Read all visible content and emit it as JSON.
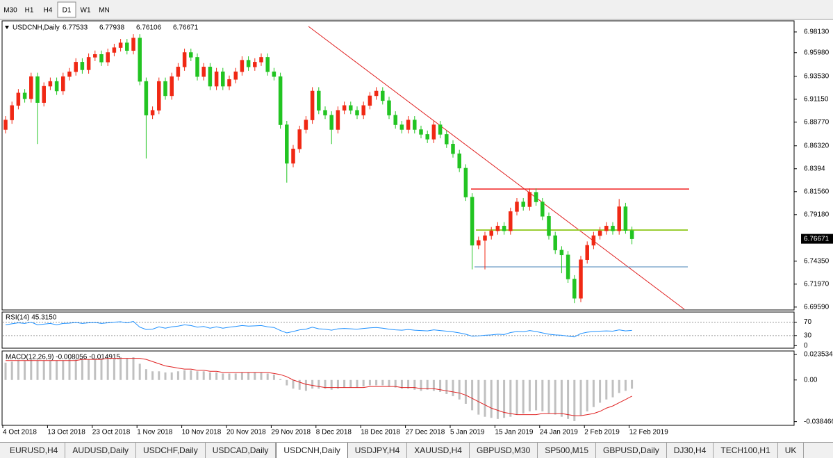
{
  "toolbar": {
    "timeframes": [
      "M30",
      "H1",
      "H4",
      "D1",
      "W1",
      "MN"
    ],
    "active": 3
  },
  "chart_data": [
    {
      "type": "candlestick",
      "title": "USDCNH,Daily",
      "info": {
        "open": 6.77533,
        "high": 6.77938,
        "low": 6.76106,
        "close": 6.76671
      },
      "up_color": "#f02814",
      "down_color": "#22c422",
      "categories": [
        "4 Oct 2018",
        null,
        null,
        null,
        null,
        null,
        null,
        "13 Oct 2018",
        null,
        null,
        null,
        null,
        null,
        null,
        "23 Oct 2018",
        null,
        null,
        null,
        null,
        null,
        null,
        "1 Nov 2018",
        null,
        null,
        null,
        null,
        null,
        null,
        "10 Nov 2018",
        null,
        null,
        null,
        null,
        null,
        null,
        "20 Nov 2018",
        null,
        null,
        null,
        null,
        null,
        null,
        "29 Nov 2018",
        null,
        null,
        null,
        null,
        null,
        null,
        "8 Dec 2018",
        null,
        null,
        null,
        null,
        null,
        null,
        "18 Dec 2018",
        null,
        null,
        null,
        null,
        null,
        null,
        "27 Dec 2018",
        null,
        null,
        null,
        null,
        null,
        null,
        "5 Jan 2019",
        null,
        null,
        null,
        null,
        null,
        null,
        "15 Jan 2019",
        null,
        null,
        null,
        null,
        null,
        null,
        "24 Jan 2019",
        null,
        null,
        null,
        null,
        null,
        null,
        "2 Feb 2019",
        null,
        null,
        null,
        null,
        null,
        null,
        "12 Feb 2019"
      ],
      "ohlc": [
        [
          6.88,
          6.894,
          6.876,
          6.89
        ],
        [
          6.89,
          6.909,
          6.886,
          6.905
        ],
        [
          6.905,
          6.922,
          6.901,
          6.918
        ],
        [
          6.918,
          6.922,
          6.908,
          6.912
        ],
        [
          6.912,
          6.939,
          6.908,
          6.935
        ],
        [
          6.935,
          6.939,
          6.865,
          6.908
        ],
        [
          6.908,
          6.929,
          6.904,
          6.925
        ],
        [
          6.925,
          6.934,
          6.921,
          6.93
        ],
        [
          6.93,
          6.934,
          6.916,
          6.92
        ],
        [
          6.92,
          6.939,
          6.916,
          6.935
        ],
        [
          6.935,
          6.944,
          6.931,
          6.94
        ],
        [
          6.94,
          6.954,
          6.936,
          6.95
        ],
        [
          6.95,
          6.954,
          6.938,
          6.942
        ],
        [
          6.942,
          6.959,
          6.938,
          6.955
        ],
        [
          6.955,
          6.962,
          6.951,
          6.958
        ],
        [
          6.958,
          6.962,
          6.946,
          6.95
        ],
        [
          6.95,
          6.964,
          6.946,
          6.96
        ],
        [
          6.96,
          6.969,
          6.956,
          6.965
        ],
        [
          6.965,
          6.974,
          6.961,
          6.97
        ],
        [
          6.97,
          6.974,
          6.958,
          6.962
        ],
        [
          6.962,
          6.979,
          6.958,
          6.975
        ],
        [
          6.975,
          6.979,
          6.926,
          6.93
        ],
        [
          6.93,
          6.934,
          6.85,
          6.895
        ],
        [
          6.895,
          6.904,
          6.891,
          6.9
        ],
        [
          6.9,
          6.934,
          6.896,
          6.93
        ],
        [
          6.93,
          6.934,
          6.911,
          6.915
        ],
        [
          6.915,
          6.939,
          6.911,
          6.935
        ],
        [
          6.935,
          6.949,
          6.931,
          6.945
        ],
        [
          6.945,
          6.964,
          6.941,
          6.96
        ],
        [
          6.96,
          6.964,
          6.951,
          6.955
        ],
        [
          6.955,
          6.959,
          6.931,
          6.935
        ],
        [
          6.935,
          6.949,
          6.931,
          6.945
        ],
        [
          6.945,
          6.949,
          6.921,
          6.925
        ],
        [
          6.925,
          6.944,
          6.921,
          6.94
        ],
        [
          6.94,
          6.944,
          6.921,
          6.925
        ],
        [
          6.925,
          6.936,
          6.921,
          6.932
        ],
        [
          6.932,
          6.944,
          6.928,
          6.94
        ],
        [
          6.94,
          6.956,
          6.936,
          6.952
        ],
        [
          6.952,
          6.956,
          6.941,
          6.945
        ],
        [
          6.945,
          6.954,
          6.941,
          6.95
        ],
        [
          6.95,
          6.959,
          6.946,
          6.955
        ],
        [
          6.955,
          6.959,
          6.936,
          6.94
        ],
        [
          6.94,
          6.944,
          6.931,
          6.935
        ],
        [
          6.935,
          6.939,
          6.881,
          6.885
        ],
        [
          6.885,
          6.889,
          6.825,
          6.845
        ],
        [
          6.845,
          6.864,
          6.841,
          6.86
        ],
        [
          6.86,
          6.884,
          6.856,
          6.88
        ],
        [
          6.88,
          6.894,
          6.876,
          6.89
        ],
        [
          6.89,
          6.924,
          6.886,
          6.92
        ],
        [
          6.92,
          6.924,
          6.896,
          6.9
        ],
        [
          6.9,
          6.904,
          6.891,
          6.895
        ],
        [
          6.895,
          6.899,
          6.865,
          6.88
        ],
        [
          6.88,
          6.904,
          6.876,
          6.9
        ],
        [
          6.9,
          6.909,
          6.896,
          6.905
        ],
        [
          6.905,
          6.909,
          6.896,
          6.9
        ],
        [
          6.9,
          6.904,
          6.891,
          6.895
        ],
        [
          6.895,
          6.909,
          6.891,
          6.905
        ],
        [
          6.905,
          6.919,
          6.901,
          6.915
        ],
        [
          6.915,
          6.924,
          6.911,
          6.92
        ],
        [
          6.92,
          6.924,
          6.906,
          6.91
        ],
        [
          6.91,
          6.914,
          6.891,
          6.895
        ],
        [
          6.895,
          6.899,
          6.881,
          6.885
        ],
        [
          6.885,
          6.889,
          6.876,
          6.88
        ],
        [
          6.88,
          6.894,
          6.876,
          6.89
        ],
        [
          6.89,
          6.894,
          6.876,
          6.88
        ],
        [
          6.88,
          6.884,
          6.871,
          6.875
        ],
        [
          6.875,
          6.879,
          6.866,
          6.87
        ],
        [
          6.87,
          6.889,
          6.866,
          6.885
        ],
        [
          6.885,
          6.889,
          6.871,
          6.875
        ],
        [
          6.875,
          6.879,
          6.861,
          6.865
        ],
        [
          6.865,
          6.869,
          6.851,
          6.855
        ],
        [
          6.855,
          6.859,
          6.836,
          6.84
        ],
        [
          6.84,
          6.844,
          6.806,
          6.81
        ],
        [
          6.81,
          6.814,
          6.735,
          6.76
        ],
        [
          6.76,
          6.769,
          6.756,
          6.765
        ],
        [
          6.765,
          6.774,
          6.735,
          6.77
        ],
        [
          6.77,
          6.779,
          6.766,
          6.775
        ],
        [
          6.775,
          6.784,
          6.771,
          6.78
        ],
        [
          6.78,
          6.784,
          6.771,
          6.775
        ],
        [
          6.775,
          6.799,
          6.771,
          6.795
        ],
        [
          6.795,
          6.809,
          6.791,
          6.805
        ],
        [
          6.805,
          6.809,
          6.796,
          6.8
        ],
        [
          6.8,
          6.819,
          6.796,
          6.815
        ],
        [
          6.815,
          6.819,
          6.801,
          6.805
        ],
        [
          6.805,
          6.809,
          6.786,
          6.79
        ],
        [
          6.79,
          6.794,
          6.766,
          6.77
        ],
        [
          6.77,
          6.774,
          6.751,
          6.755
        ],
        [
          6.755,
          6.759,
          6.731,
          6.75
        ],
        [
          6.75,
          6.754,
          6.721,
          6.725
        ],
        [
          6.725,
          6.729,
          6.7,
          6.705
        ],
        [
          6.705,
          6.749,
          6.701,
          6.745
        ],
        [
          6.745,
          6.764,
          6.741,
          6.76
        ],
        [
          6.76,
          6.774,
          6.756,
          6.77
        ],
        [
          6.77,
          6.779,
          6.766,
          6.775
        ],
        [
          6.775,
          6.784,
          6.771,
          6.78
        ],
        [
          6.78,
          6.784,
          6.771,
          6.775
        ],
        [
          6.775,
          6.808,
          6.771,
          6.8
        ],
        [
          6.8,
          6.804,
          6.772,
          6.7753
        ],
        [
          6.77533,
          6.77938,
          6.76106,
          6.76671
        ]
      ],
      "ylim": [
        6.6929,
        6.9928
      ],
      "yticks": [
        {
          "value": 6.9813,
          "label": "6.98130"
        },
        {
          "value": 6.9598,
          "label": "6.95980"
        },
        {
          "value": 6.9353,
          "label": "6.93530"
        },
        {
          "value": 6.9115,
          "label": "6.91150"
        },
        {
          "value": 6.8877,
          "label": "6.88770"
        },
        {
          "value": 6.8632,
          "label": "6.86320"
        },
        6.8394,
        {
          "value": 6.8156,
          "label": "6.81560"
        },
        {
          "value": 6.7918,
          "label": "6.79180"
        },
        {
          "value": 6.7435,
          "label": "6.74350"
        },
        {
          "value": 6.7197,
          "label": "6.71970"
        },
        {
          "value": 6.6959,
          "label": "6.69590"
        }
      ]
    },
    {
      "type": "line",
      "title": "RSI(14) 45.3150",
      "color": "#1e90ff",
      "values": [
        62,
        65,
        68,
        66,
        70,
        62,
        64,
        66,
        62,
        66,
        67,
        69,
        66,
        68,
        69,
        66,
        68,
        70,
        71,
        68,
        72,
        55,
        48,
        49,
        56,
        52,
        56,
        58,
        62,
        60,
        55,
        57,
        52,
        56,
        52,
        55,
        57,
        60,
        58,
        59,
        60,
        56,
        54,
        45,
        38,
        42,
        47,
        49,
        55,
        50,
        49,
        46,
        50,
        51,
        50,
        49,
        51,
        53,
        54,
        52,
        49,
        47,
        46,
        48,
        46,
        45,
        44,
        47,
        45,
        43,
        41,
        38,
        34,
        28,
        29,
        31,
        32,
        34,
        33,
        39,
        42,
        41,
        45,
        42,
        38,
        34,
        32,
        31,
        28,
        26,
        36,
        40,
        42,
        43,
        44,
        43,
        47,
        44,
        45.315
      ],
      "ylim": [
        -7.6,
        100
      ],
      "yticks": [
        70,
        30,
        0
      ],
      "levels": [
        70,
        30
      ]
    },
    {
      "type": "macd",
      "title": "MACD(12,26,9) -0.008056 -0.014915",
      "hist_color": "#c0c0c0",
      "signal_color": "#e02020",
      "histogram": [
        0.016,
        0.017,
        0.018,
        0.018,
        0.019,
        0.018,
        0.018,
        0.018,
        0.018,
        0.018,
        0.019,
        0.019,
        0.019,
        0.019,
        0.02,
        0.02,
        0.02,
        0.02,
        0.021,
        0.02,
        0.021,
        0.015,
        0.01,
        0.008,
        0.008,
        0.007,
        0.007,
        0.008,
        0.009,
        0.009,
        0.008,
        0.008,
        0.007,
        0.007,
        0.006,
        0.006,
        0.006,
        0.007,
        0.007,
        0.007,
        0.007,
        0.006,
        0.005,
        0.001,
        -0.005,
        -0.008,
        -0.009,
        -0.01,
        -0.008,
        -0.008,
        -0.008,
        -0.009,
        -0.008,
        -0.007,
        -0.007,
        -0.007,
        -0.006,
        -0.005,
        -0.005,
        -0.005,
        -0.006,
        -0.007,
        -0.008,
        -0.008,
        -0.009,
        -0.01,
        -0.009,
        -0.01,
        -0.011,
        -0.013,
        -0.015,
        -0.018,
        -0.022,
        -0.028,
        -0.032,
        -0.034,
        -0.035,
        -0.036,
        -0.035,
        -0.034,
        -0.032,
        -0.031,
        -0.029,
        -0.028,
        -0.029,
        -0.031,
        -0.032,
        -0.034,
        -0.036,
        -0.038,
        -0.033,
        -0.029,
        -0.025,
        -0.021,
        -0.018,
        -0.016,
        -0.012,
        -0.01,
        -0.008056
      ],
      "signal": [
        0.018,
        0.018,
        0.018,
        0.018,
        0.018,
        0.018,
        0.018,
        0.018,
        0.018,
        0.018,
        0.018,
        0.018,
        0.019,
        0.019,
        0.019,
        0.019,
        0.02,
        0.02,
        0.02,
        0.02,
        0.02,
        0.02,
        0.019,
        0.017,
        0.015,
        0.013,
        0.012,
        0.011,
        0.01,
        0.01,
        0.009,
        0.009,
        0.008,
        0.008,
        0.007,
        0.007,
        0.007,
        0.007,
        0.007,
        0.007,
        0.007,
        0.007,
        0.006,
        0.005,
        0.003,
        0,
        -0.002,
        -0.004,
        -0.005,
        -0.006,
        -0.007,
        -0.007,
        -0.007,
        -0.007,
        -0.007,
        -0.007,
        -0.007,
        -0.006,
        -0.006,
        -0.006,
        -0.006,
        -0.006,
        -0.007,
        -0.007,
        -0.007,
        -0.008,
        -0.008,
        -0.008,
        -0.009,
        -0.01,
        -0.011,
        -0.012,
        -0.014,
        -0.017,
        -0.02,
        -0.023,
        -0.026,
        -0.028,
        -0.03,
        -0.031,
        -0.032,
        -0.032,
        -0.032,
        -0.032,
        -0.031,
        -0.031,
        -0.031,
        -0.031,
        -0.032,
        -0.033,
        -0.033,
        -0.032,
        -0.031,
        -0.029,
        -0.026,
        -0.024,
        -0.021,
        -0.018,
        -0.014915
      ],
      "ylim": [
        -0.0419,
        0.0268
      ],
      "yticks": [
        0.023534,
        {
          "value": 0,
          "label": "0.00"
        },
        -0.038466
      ]
    }
  ],
  "tabs": [
    "EURUSD,H4",
    "AUDUSD,Daily",
    "USDCHF,Daily",
    "USDCAD,Daily",
    "USDCNH,Daily",
    "USDJPY,H4",
    "XAUUSD,H4",
    "GBPUSD,M30",
    "SP500,M15",
    "GBPUSD,Daily",
    "DJ30,H4",
    "TECH100,H1",
    "UK"
  ],
  "active_tab": 4
}
